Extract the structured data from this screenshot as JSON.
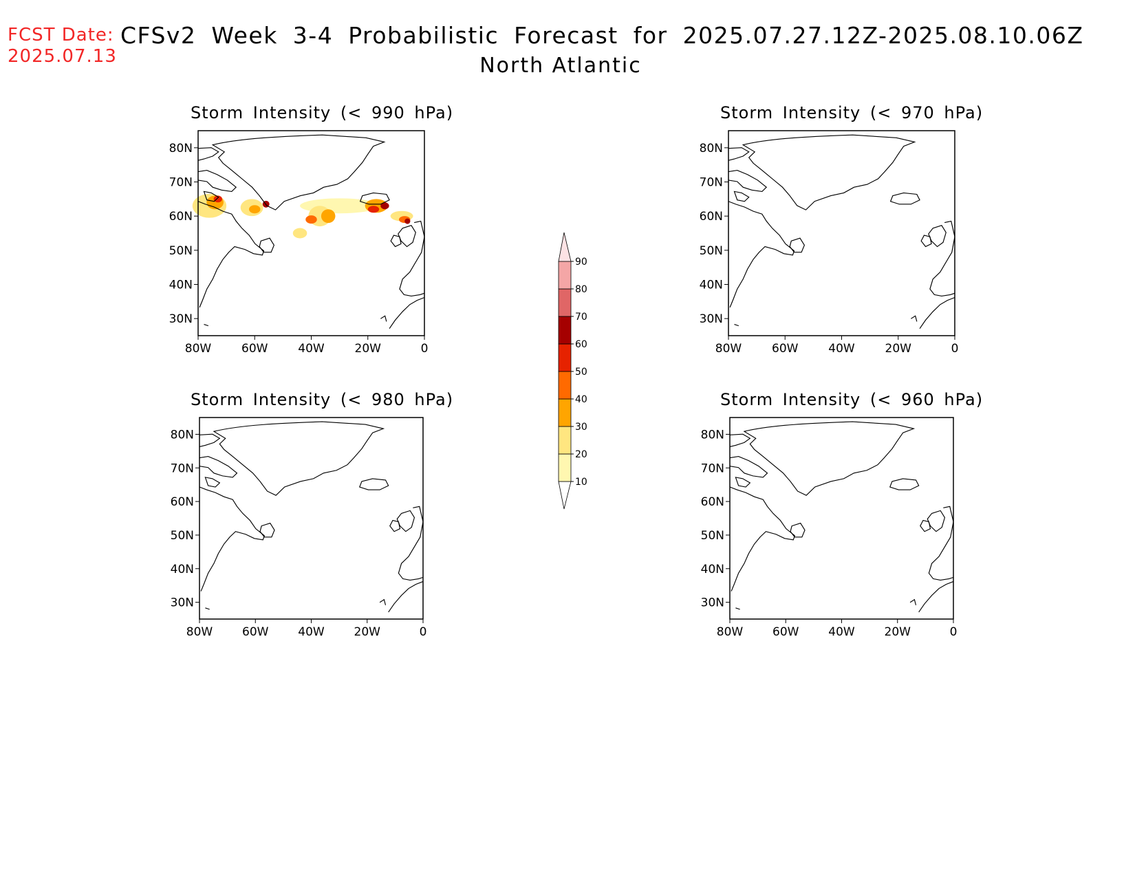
{
  "header": {
    "fcst_label": "FCST Date:",
    "fcst_date": "2025.07.13",
    "title": "CFSv2 Week 3-4 Probabilistic Forecast for 2025.07.27.12Z-2025.08.10.06Z",
    "subtitle": "North Atlantic"
  },
  "panels": [
    {
      "title": "Storm Intensity (< 990 hPa)"
    },
    {
      "title": "Storm Intensity (< 970 hPa)"
    },
    {
      "title": "Storm Intensity (< 980 hPa)"
    },
    {
      "title": "Storm Intensity (< 960 hPa)"
    }
  ],
  "axes": {
    "lat_labels": [
      "80N",
      "70N",
      "60N",
      "50N",
      "40N",
      "30N"
    ],
    "lat_values": [
      80,
      70,
      60,
      50,
      40,
      30
    ],
    "lon_labels": [
      "80W",
      "60W",
      "40W",
      "20W",
      "0"
    ],
    "lon_values": [
      -80,
      -60,
      -40,
      -20,
      0
    ],
    "lat_range": [
      25,
      85
    ],
    "lon_range": [
      -80,
      0
    ]
  },
  "colorbar": {
    "levels": [
      "10",
      "20",
      "30",
      "40",
      "50",
      "60",
      "70",
      "80",
      "90"
    ],
    "colors": [
      "#fff7b0",
      "#ffe680",
      "#ffa500",
      "#ff6a00",
      "#e62200",
      "#a50000",
      "#e06666",
      "#f4a6a6",
      "#fde2e4"
    ]
  }
}
